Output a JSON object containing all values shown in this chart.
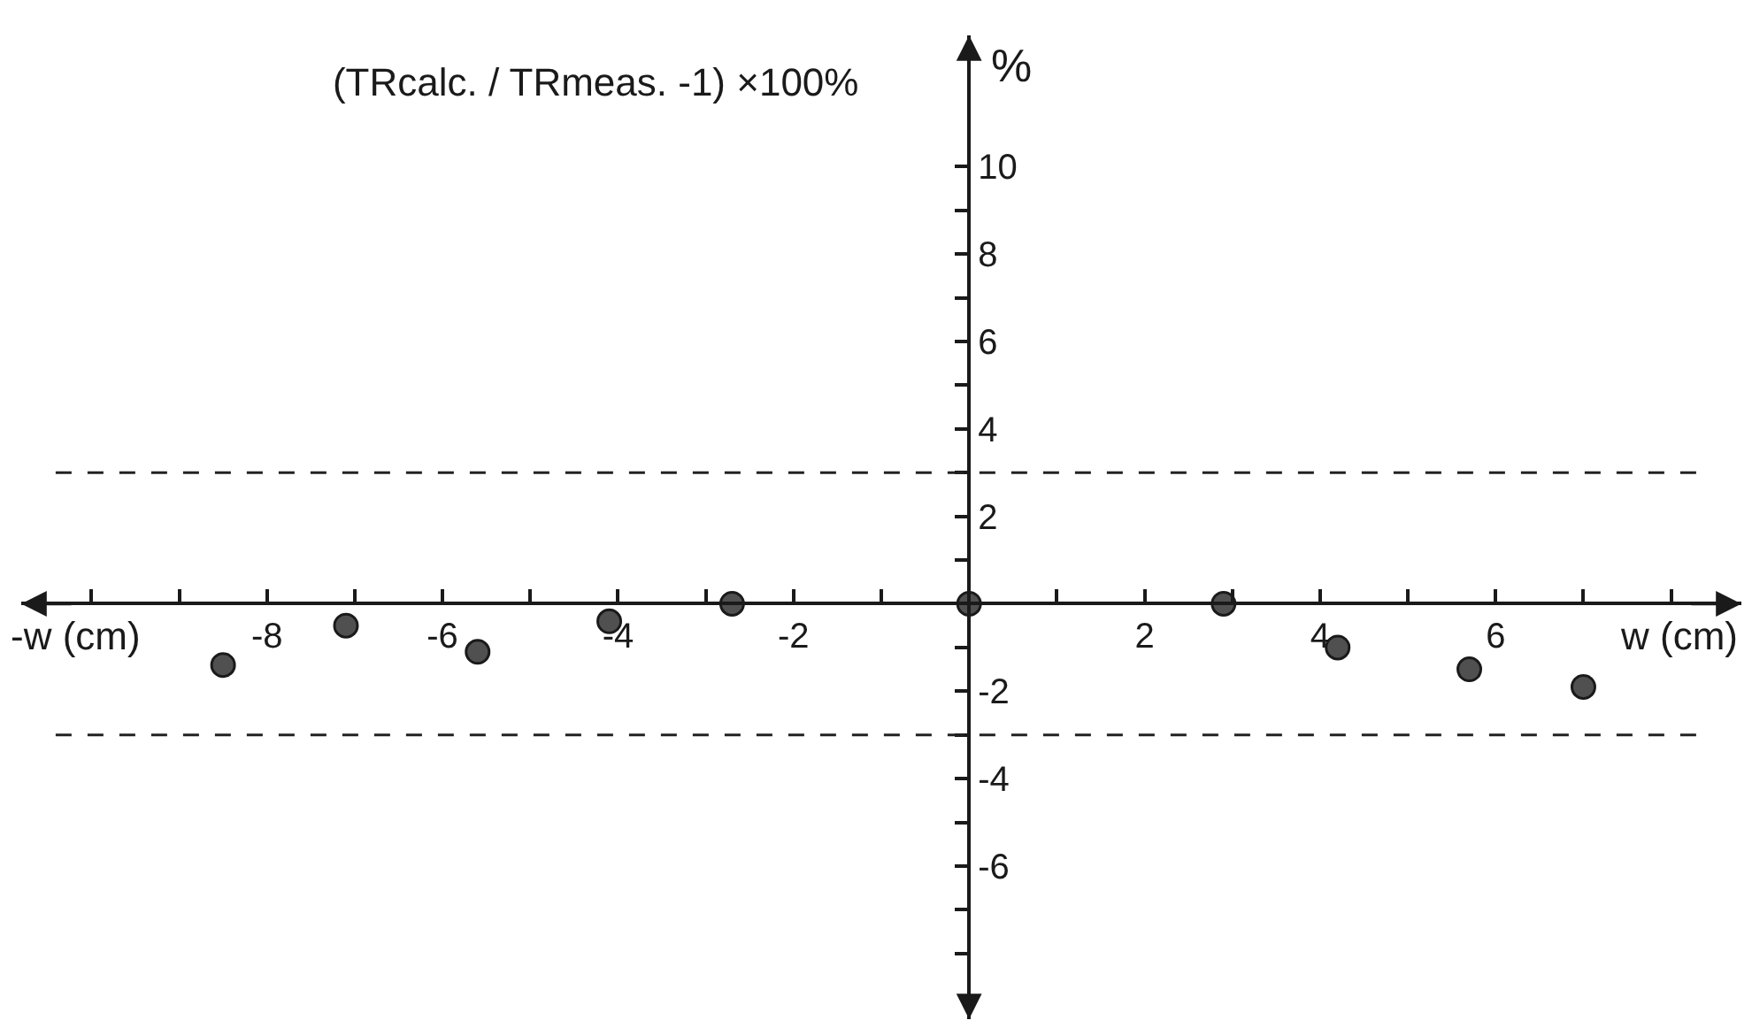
{
  "chart_data": {
    "type": "scatter",
    "title": "(TRcalc. / TRmeas. -1) ×100%",
    "xlabel": "w (cm)",
    "ylabel": "%",
    "annotations": [
      "-w (cm)"
    ],
    "x": [
      -8.5,
      -7.1,
      -5.6,
      -4.1,
      -2.7,
      0,
      2.9,
      4.2,
      5.7,
      7.0
    ],
    "values": [
      -1.4,
      -0.5,
      -1.1,
      -0.4,
      0,
      0,
      0,
      -1.0,
      -1.5,
      -1.9
    ],
    "color": "#505050",
    "marker": "circle",
    "xlim": [
      -10.8,
      8.8
    ],
    "ylim": [
      -9.5,
      13
    ],
    "xticks": [
      {
        "value": -10,
        "label": null
      },
      {
        "value": -9,
        "label": null
      },
      -8,
      {
        "value": -7,
        "label": null
      },
      -6,
      {
        "value": -5,
        "label": null
      },
      -4,
      {
        "value": -3,
        "label": null
      },
      -2,
      {
        "value": -1,
        "label": null
      },
      {
        "value": 1,
        "label": null
      },
      2,
      {
        "value": 3,
        "label": null
      },
      4,
      {
        "value": 5,
        "label": null
      },
      6,
      {
        "value": 7,
        "label": null
      },
      {
        "value": 8,
        "label": null
      }
    ],
    "yticks": [
      {
        "value": -8,
        "label": null
      },
      {
        "value": -7,
        "label": null
      },
      -6,
      {
        "value": -5,
        "label": null
      },
      -4,
      {
        "value": -3,
        "label": null
      },
      -2,
      {
        "value": -1,
        "label": null
      },
      {
        "value": 1,
        "label": null
      },
      2,
      {
        "value": 3,
        "label": null
      },
      4,
      {
        "value": 5,
        "label": null
      },
      6,
      {
        "value": 7,
        "label": null
      },
      8,
      {
        "value": 9,
        "label": null
      },
      10
    ],
    "ref_lines": [
      {
        "axis": "y",
        "value": 3,
        "line_style": "dashed",
        "color": "#222222"
      },
      {
        "axis": "y",
        "value": -3,
        "line_style": "dashed",
        "color": "#222222"
      }
    ]
  }
}
